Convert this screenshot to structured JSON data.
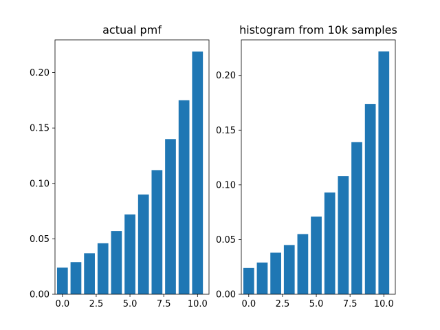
{
  "chart_data": [
    {
      "type": "bar",
      "title": "actual pmf",
      "categories": [
        0,
        1,
        2,
        3,
        4,
        5,
        6,
        7,
        8,
        9,
        10
      ],
      "values": [
        0.024,
        0.029,
        0.037,
        0.046,
        0.057,
        0.072,
        0.09,
        0.112,
        0.14,
        0.175,
        0.219
      ],
      "xlim": [
        -0.55,
        10.85
      ],
      "ylim": [
        0,
        0.2295
      ],
      "xticks": [
        0.0,
        2.5,
        5.0,
        7.5,
        10.0
      ],
      "xtick_labels": [
        "0.0",
        "2.5",
        "5.0",
        "7.5",
        "10.0"
      ],
      "yticks": [
        0.0,
        0.05,
        0.1,
        0.15,
        0.2
      ],
      "ytick_labels": [
        "0.00",
        "0.05",
        "0.10",
        "0.15",
        "0.20"
      ],
      "xlabel": "",
      "ylabel": "",
      "bar_color": "#1f77b4"
    },
    {
      "type": "bar",
      "title": "histogram from 10k samples",
      "categories": [
        0,
        1,
        2,
        3,
        4,
        5,
        6,
        7,
        8,
        9,
        10
      ],
      "values": [
        0.024,
        0.029,
        0.038,
        0.045,
        0.055,
        0.071,
        0.093,
        0.108,
        0.139,
        0.174,
        0.222
      ],
      "xlim": [
        -0.55,
        10.85
      ],
      "ylim": [
        0,
        0.2325
      ],
      "xticks": [
        0.0,
        2.5,
        5.0,
        7.5,
        10.0
      ],
      "xtick_labels": [
        "0.0",
        "2.5",
        "5.0",
        "7.5",
        "10.0"
      ],
      "yticks": [
        0.0,
        0.05,
        0.1,
        0.15,
        0.2
      ],
      "ytick_labels": [
        "0.00",
        "0.05",
        "0.10",
        "0.15",
        "0.20"
      ],
      "xlabel": "",
      "ylabel": "",
      "bar_color": "#1f77b4"
    }
  ]
}
